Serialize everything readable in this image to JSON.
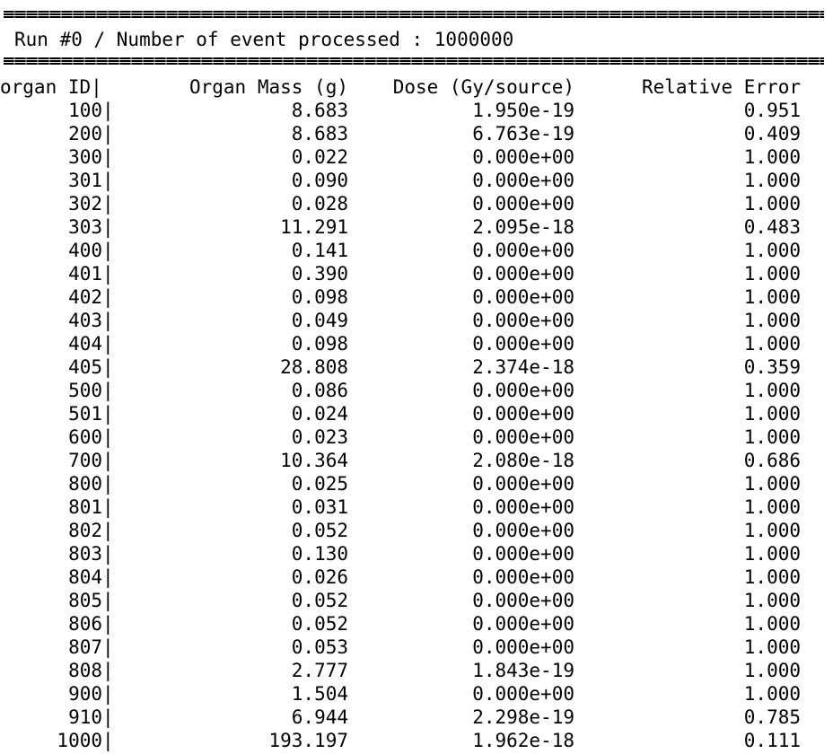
{
  "run_header": "Run #0 / Number of event processed : 1000000",
  "columns": {
    "organ_id": "organ ID|",
    "organ_mass": "Organ Mass (g)",
    "dose": "Dose (Gy/source)",
    "relative_error": "Relative Error"
  },
  "rows": [
    {
      "id": "100",
      "mass": "8.683",
      "dose": "1.950e-19",
      "err": "0.951"
    },
    {
      "id": "200",
      "mass": "8.683",
      "dose": "6.763e-19",
      "err": "0.409"
    },
    {
      "id": "300",
      "mass": "0.022",
      "dose": "0.000e+00",
      "err": "1.000"
    },
    {
      "id": "301",
      "mass": "0.090",
      "dose": "0.000e+00",
      "err": "1.000"
    },
    {
      "id": "302",
      "mass": "0.028",
      "dose": "0.000e+00",
      "err": "1.000"
    },
    {
      "id": "303",
      "mass": "11.291",
      "dose": "2.095e-18",
      "err": "0.483"
    },
    {
      "id": "400",
      "mass": "0.141",
      "dose": "0.000e+00",
      "err": "1.000"
    },
    {
      "id": "401",
      "mass": "0.390",
      "dose": "0.000e+00",
      "err": "1.000"
    },
    {
      "id": "402",
      "mass": "0.098",
      "dose": "0.000e+00",
      "err": "1.000"
    },
    {
      "id": "403",
      "mass": "0.049",
      "dose": "0.000e+00",
      "err": "1.000"
    },
    {
      "id": "404",
      "mass": "0.098",
      "dose": "0.000e+00",
      "err": "1.000"
    },
    {
      "id": "405",
      "mass": "28.808",
      "dose": "2.374e-18",
      "err": "0.359"
    },
    {
      "id": "500",
      "mass": "0.086",
      "dose": "0.000e+00",
      "err": "1.000"
    },
    {
      "id": "501",
      "mass": "0.024",
      "dose": "0.000e+00",
      "err": "1.000"
    },
    {
      "id": "600",
      "mass": "0.023",
      "dose": "0.000e+00",
      "err": "1.000"
    },
    {
      "id": "700",
      "mass": "10.364",
      "dose": "2.080e-18",
      "err": "0.686"
    },
    {
      "id": "800",
      "mass": "0.025",
      "dose": "0.000e+00",
      "err": "1.000"
    },
    {
      "id": "801",
      "mass": "0.031",
      "dose": "0.000e+00",
      "err": "1.000"
    },
    {
      "id": "802",
      "mass": "0.052",
      "dose": "0.000e+00",
      "err": "1.000"
    },
    {
      "id": "803",
      "mass": "0.130",
      "dose": "0.000e+00",
      "err": "1.000"
    },
    {
      "id": "804",
      "mass": "0.026",
      "dose": "0.000e+00",
      "err": "1.000"
    },
    {
      "id": "805",
      "mass": "0.052",
      "dose": "0.000e+00",
      "err": "1.000"
    },
    {
      "id": "806",
      "mass": "0.052",
      "dose": "0.000e+00",
      "err": "1.000"
    },
    {
      "id": "807",
      "mass": "0.053",
      "dose": "0.000e+00",
      "err": "1.000"
    },
    {
      "id": "808",
      "mass": "2.777",
      "dose": "1.843e-19",
      "err": "1.000"
    },
    {
      "id": "900",
      "mass": "1.504",
      "dose": "0.000e+00",
      "err": "1.000"
    },
    {
      "id": "910",
      "mass": "6.944",
      "dose": "2.298e-19",
      "err": "0.785"
    },
    {
      "id": "1000",
      "mass": "193.197",
      "dose": "1.962e-18",
      "err": "0.111"
    }
  ]
}
